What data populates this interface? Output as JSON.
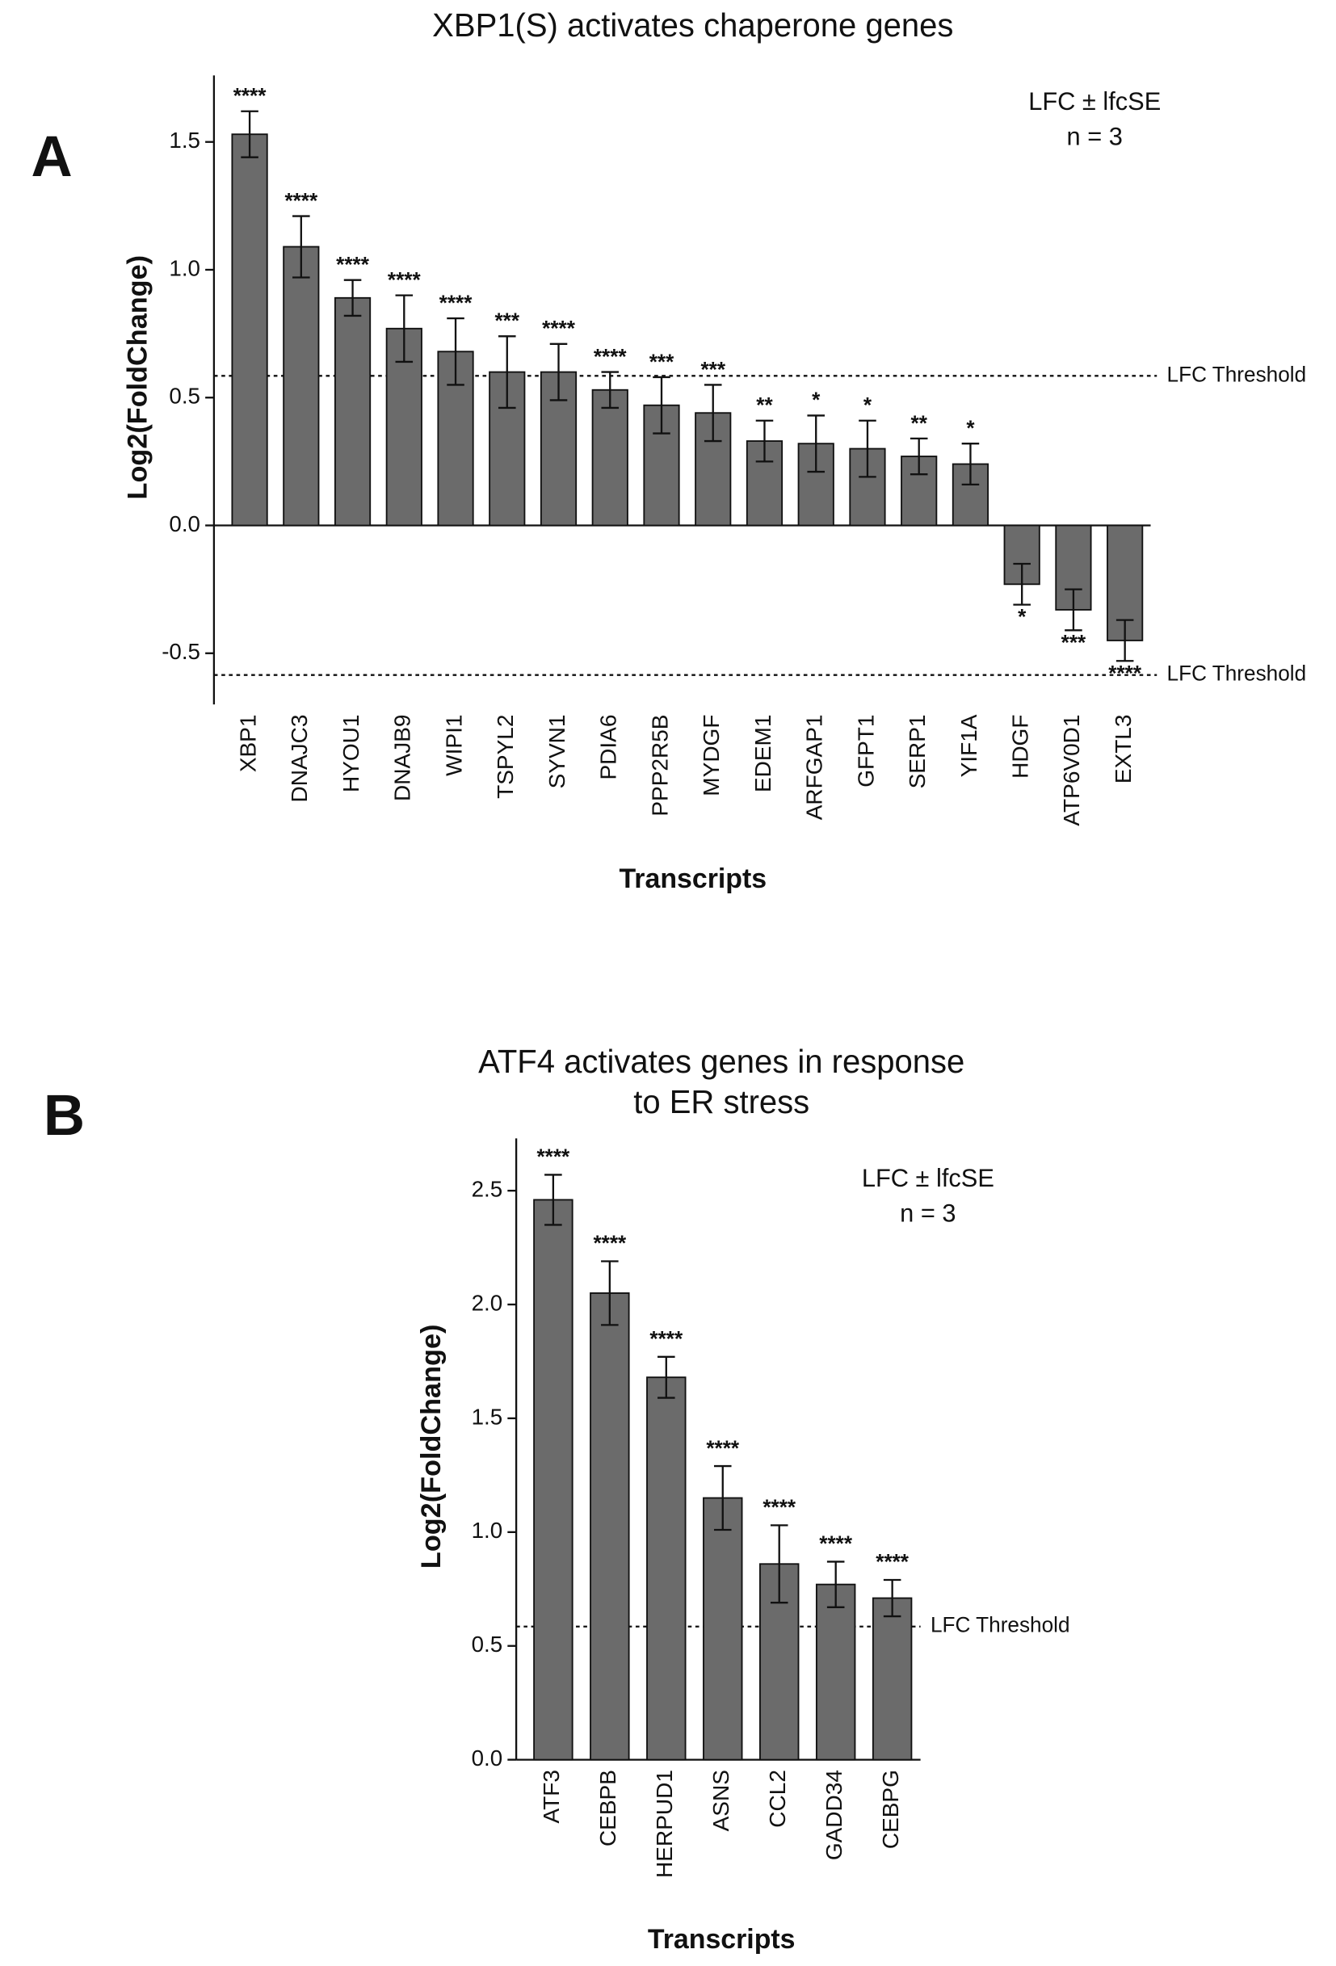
{
  "chart_data": [
    {
      "type": "bar",
      "panel": "A",
      "title": "XBP1(S) activates chaperone genes",
      "xlabel": "Transcripts",
      "ylabel": "Log2(FoldChange)",
      "notes": [
        "LFC ± lfcSE",
        "n = 3"
      ],
      "categories": [
        "XBP1",
        "DNAJC3",
        "HYOU1",
        "DNAJB9",
        "WIPI1",
        "TSPYL2",
        "SYVN1",
        "PDIA6",
        "PPP2R5B",
        "MYDGF",
        "EDEM1",
        "ARFGAP1",
        "GFPT1",
        "SERP1",
        "YIF1A",
        "HDGF",
        "ATP6V0D1",
        "EXTL3"
      ],
      "values": [
        1.53,
        1.09,
        0.89,
        0.77,
        0.68,
        0.6,
        0.6,
        0.53,
        0.47,
        0.44,
        0.33,
        0.32,
        0.3,
        0.27,
        0.24,
        -0.23,
        -0.33,
        -0.45
      ],
      "errors": [
        0.09,
        0.12,
        0.07,
        0.13,
        0.13,
        0.14,
        0.11,
        0.07,
        0.11,
        0.11,
        0.08,
        0.11,
        0.11,
        0.07,
        0.08,
        0.08,
        0.08,
        0.08
      ],
      "significance": [
        "****",
        "****",
        "****",
        "****",
        "****",
        "***",
        "****",
        "****",
        "***",
        "***",
        "**",
        "*",
        "*",
        "**",
        "*",
        "*",
        "***",
        "****"
      ],
      "thresholds": [
        0.585,
        -0.585
      ],
      "threshold_labels": [
        "LFC Threshold",
        "LFC Threshold"
      ],
      "color": "#6b6b6b",
      "ylim": [
        -0.7,
        1.76
      ],
      "yticks": [
        -0.5,
        {
          "value": 0,
          "label": "0.0"
        },
        0.5,
        {
          "value": 1,
          "label": "1.0"
        },
        1.5
      ]
    },
    {
      "type": "bar",
      "panel": "B",
      "title": [
        "ATF4 activates genes in response",
        "to ER stress"
      ],
      "xlabel": "Transcripts",
      "ylabel": "Log2(FoldChange)",
      "notes": [
        "LFC ± lfcSE",
        "n = 3"
      ],
      "categories": [
        "ATF3",
        "CEBPB",
        "HERPUD1",
        "ASNS",
        "CCL2",
        "GADD34",
        "CEBPG"
      ],
      "values": [
        2.46,
        2.05,
        1.68,
        1.15,
        0.86,
        0.77,
        0.71
      ],
      "errors": [
        0.11,
        0.14,
        0.09,
        0.14,
        0.17,
        0.1,
        0.08
      ],
      "significance": [
        "****",
        "****",
        "****",
        "****",
        "****",
        "****",
        "****"
      ],
      "thresholds": [
        0.585
      ],
      "threshold_labels": [
        "LFC Threshold"
      ],
      "color": "#6b6b6b",
      "ylim": [
        0,
        2.73
      ],
      "yticks": [
        {
          "value": 0,
          "label": "0.0"
        },
        0.5,
        {
          "value": 1,
          "label": "1.0"
        },
        1.5,
        {
          "value": 2,
          "label": "2.0"
        },
        2.5
      ]
    }
  ]
}
